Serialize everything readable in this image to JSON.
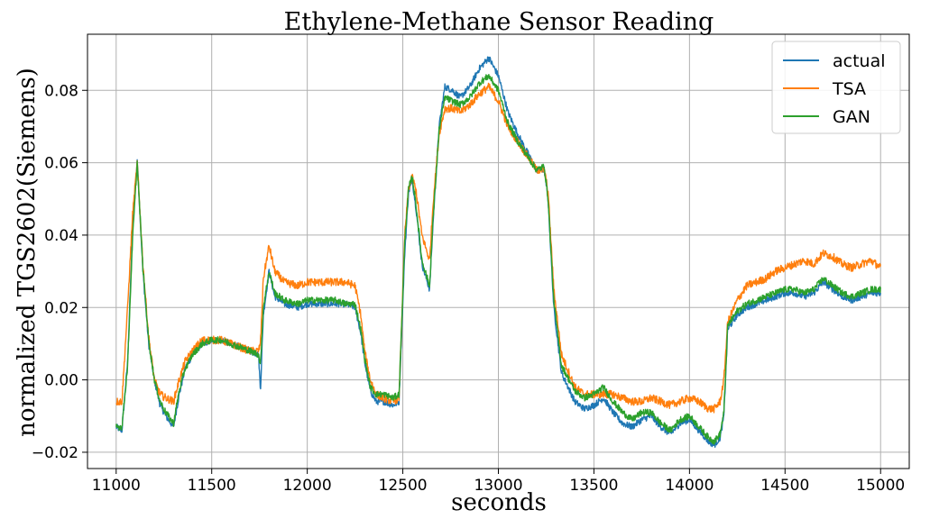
{
  "chart_data": {
    "type": "line",
    "title": "Ethylene-Methane Sensor Reading",
    "xlabel": "seconds",
    "ylabel": "normalized TGS2602(Siemens)",
    "xlim": [
      10850,
      15150
    ],
    "ylim": [
      -0.0245,
      0.0955
    ],
    "xticks": [
      11000,
      11500,
      12000,
      12500,
      13000,
      13500,
      14000,
      14500,
      15000
    ],
    "xtick_labels": [
      "11000",
      "11500",
      "12000",
      "12500",
      "13000",
      "13500",
      "14000",
      "14500",
      "15000"
    ],
    "yticks": [
      -0.02,
      0.0,
      0.02,
      0.04,
      0.06,
      0.08
    ],
    "ytick_labels": [
      "−0.02",
      "0.00",
      "0.02",
      "0.04",
      "0.06",
      "0.08"
    ],
    "grid": true,
    "legend_position": "top-right",
    "series": [
      {
        "name": "actual",
        "color": "#1f77b4",
        "noise": 0.0009,
        "x": [
          11000,
          11030,
          11060,
          11085,
          11110,
          11140,
          11170,
          11200,
          11230,
          11260,
          11300,
          11330,
          11360,
          11400,
          11450,
          11500,
          11550,
          11600,
          11650,
          11700,
          11745,
          11755,
          11770,
          11800,
          11830,
          11880,
          11950,
          12000,
          12050,
          12100,
          12150,
          12200,
          12250,
          12280,
          12300,
          12330,
          12360,
          12400,
          12450,
          12480,
          12510,
          12530,
          12550,
          12570,
          12600,
          12640,
          12660,
          12690,
          12720,
          12760,
          12800,
          12850,
          12900,
          12950,
          13000,
          13050,
          13100,
          13150,
          13200,
          13240,
          13260,
          13290,
          13330,
          13400,
          13450,
          13500,
          13550,
          13600,
          13650,
          13700,
          13750,
          13800,
          13850,
          13900,
          13950,
          14000,
          14050,
          14100,
          14130,
          14160,
          14180,
          14200,
          14250,
          14300,
          14350,
          14400,
          14450,
          14500,
          14550,
          14600,
          14650,
          14700,
          14750,
          14800,
          14850,
          14900,
          14950,
          15000
        ],
        "y": [
          -0.013,
          -0.014,
          0.005,
          0.04,
          0.061,
          0.03,
          0.01,
          0.0,
          -0.007,
          -0.01,
          -0.013,
          -0.004,
          0.003,
          0.007,
          0.01,
          0.011,
          0.011,
          0.01,
          0.009,
          0.008,
          0.007,
          -0.003,
          0.018,
          0.03,
          0.023,
          0.021,
          0.02,
          0.021,
          0.021,
          0.021,
          0.021,
          0.021,
          0.02,
          0.013,
          0.005,
          -0.003,
          -0.006,
          -0.006,
          -0.007,
          -0.006,
          0.035,
          0.052,
          0.055,
          0.047,
          0.032,
          0.025,
          0.045,
          0.07,
          0.081,
          0.08,
          0.078,
          0.081,
          0.086,
          0.089,
          0.084,
          0.074,
          0.068,
          0.063,
          0.058,
          0.058,
          0.05,
          0.02,
          0.002,
          -0.006,
          -0.008,
          -0.007,
          -0.005,
          -0.009,
          -0.012,
          -0.013,
          -0.011,
          -0.01,
          -0.013,
          -0.015,
          -0.012,
          -0.011,
          -0.014,
          -0.017,
          -0.018,
          -0.016,
          -0.01,
          0.014,
          0.018,
          0.02,
          0.021,
          0.022,
          0.023,
          0.024,
          0.024,
          0.023,
          0.024,
          0.027,
          0.025,
          0.023,
          0.022,
          0.023,
          0.024,
          0.024
        ]
      },
      {
        "name": "TSA",
        "color": "#ff7f0e",
        "noise": 0.0011,
        "x": [
          11000,
          11030,
          11060,
          11085,
          11110,
          11140,
          11170,
          11200,
          11230,
          11260,
          11300,
          11330,
          11360,
          11400,
          11450,
          11500,
          11550,
          11600,
          11650,
          11700,
          11745,
          11755,
          11770,
          11800,
          11830,
          11880,
          11950,
          12000,
          12050,
          12100,
          12150,
          12200,
          12250,
          12280,
          12300,
          12330,
          12360,
          12400,
          12450,
          12480,
          12510,
          12530,
          12550,
          12570,
          12600,
          12640,
          12660,
          12690,
          12720,
          12760,
          12800,
          12850,
          12900,
          12950,
          13000,
          13050,
          13100,
          13150,
          13200,
          13240,
          13260,
          13290,
          13330,
          13400,
          13450,
          13500,
          13550,
          13600,
          13650,
          13700,
          13750,
          13800,
          13850,
          13900,
          13950,
          14000,
          14050,
          14100,
          14130,
          14160,
          14180,
          14200,
          14250,
          14300,
          14350,
          14400,
          14450,
          14500,
          14550,
          14600,
          14650,
          14700,
          14750,
          14800,
          14850,
          14900,
          14950,
          15000
        ],
        "y": [
          -0.006,
          -0.006,
          0.02,
          0.045,
          0.06,
          0.032,
          0.012,
          0.0,
          -0.004,
          -0.005,
          -0.006,
          0.0,
          0.005,
          0.008,
          0.011,
          0.011,
          0.011,
          0.01,
          0.009,
          0.008,
          0.008,
          0.01,
          0.028,
          0.037,
          0.03,
          0.027,
          0.026,
          0.027,
          0.027,
          0.027,
          0.027,
          0.027,
          0.026,
          0.018,
          0.008,
          0.0,
          -0.004,
          -0.005,
          -0.006,
          -0.005,
          0.04,
          0.053,
          0.056,
          0.052,
          0.04,
          0.033,
          0.05,
          0.068,
          0.075,
          0.075,
          0.074,
          0.076,
          0.079,
          0.081,
          0.077,
          0.07,
          0.066,
          0.062,
          0.058,
          0.058,
          0.052,
          0.025,
          0.007,
          -0.002,
          -0.004,
          -0.004,
          -0.004,
          -0.004,
          -0.005,
          -0.006,
          -0.006,
          -0.005,
          -0.006,
          -0.007,
          -0.006,
          -0.005,
          -0.006,
          -0.008,
          -0.008,
          -0.006,
          0.0,
          0.016,
          0.022,
          0.026,
          0.027,
          0.028,
          0.03,
          0.031,
          0.032,
          0.033,
          0.032,
          0.035,
          0.034,
          0.032,
          0.031,
          0.032,
          0.033,
          0.031
        ]
      },
      {
        "name": "GAN",
        "color": "#2ca02c",
        "noise": 0.0009,
        "x": [
          11000,
          11030,
          11060,
          11085,
          11110,
          11140,
          11170,
          11200,
          11230,
          11260,
          11300,
          11330,
          11360,
          11400,
          11450,
          11500,
          11550,
          11600,
          11650,
          11700,
          11745,
          11755,
          11770,
          11800,
          11830,
          11880,
          11950,
          12000,
          12050,
          12100,
          12150,
          12200,
          12250,
          12280,
          12300,
          12330,
          12360,
          12400,
          12450,
          12480,
          12510,
          12530,
          12550,
          12570,
          12600,
          12640,
          12660,
          12690,
          12720,
          12760,
          12800,
          12850,
          12900,
          12950,
          13000,
          13050,
          13100,
          13150,
          13200,
          13240,
          13260,
          13290,
          13330,
          13400,
          13450,
          13500,
          13550,
          13600,
          13650,
          13700,
          13750,
          13800,
          13850,
          13900,
          13950,
          14000,
          14050,
          14100,
          14130,
          14160,
          14180,
          14200,
          14250,
          14300,
          14350,
          14400,
          14450,
          14500,
          14550,
          14600,
          14650,
          14700,
          14750,
          14800,
          14850,
          14900,
          14950,
          15000
        ],
        "y": [
          -0.013,
          -0.013,
          0.004,
          0.038,
          0.06,
          0.031,
          0.011,
          0.0,
          -0.006,
          -0.009,
          -0.012,
          -0.003,
          0.003,
          0.007,
          0.01,
          0.011,
          0.011,
          0.01,
          0.009,
          0.008,
          0.007,
          0.004,
          0.02,
          0.03,
          0.024,
          0.022,
          0.021,
          0.022,
          0.022,
          0.022,
          0.022,
          0.021,
          0.021,
          0.014,
          0.006,
          -0.002,
          -0.004,
          -0.004,
          -0.005,
          -0.004,
          0.038,
          0.053,
          0.056,
          0.048,
          0.033,
          0.026,
          0.046,
          0.069,
          0.078,
          0.077,
          0.076,
          0.078,
          0.082,
          0.084,
          0.08,
          0.071,
          0.066,
          0.062,
          0.058,
          0.059,
          0.05,
          0.022,
          0.004,
          -0.003,
          -0.005,
          -0.004,
          -0.002,
          -0.006,
          -0.009,
          -0.011,
          -0.009,
          -0.009,
          -0.012,
          -0.014,
          -0.011,
          -0.01,
          -0.013,
          -0.016,
          -0.017,
          -0.015,
          -0.009,
          0.015,
          0.019,
          0.021,
          0.022,
          0.023,
          0.024,
          0.025,
          0.025,
          0.024,
          0.025,
          0.028,
          0.026,
          0.024,
          0.023,
          0.024,
          0.025,
          0.025
        ]
      }
    ]
  }
}
